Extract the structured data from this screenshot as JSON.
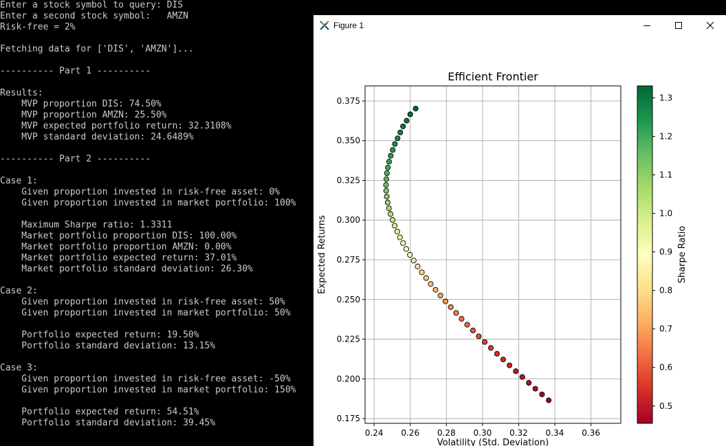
{
  "terminal": {
    "lines": [
      "Enter a stock symbol to query: DIS",
      "Enter a second stock symbol:   AMZN",
      "Risk-free = 2%",
      "",
      "Fetching data for ['DIS', 'AMZN']...",
      "",
      "---------- Part 1 ----------",
      "",
      "Results:",
      "    MVP proportion DIS: 74.50%",
      "    MVP proportion AMZN: 25.50%",
      "    MVP expected portfolio return: 32.3108%",
      "    MVP standard deviation: 24.6489%",
      "",
      "---------- Part 2 ----------",
      "",
      "Case 1:",
      "    Given proportion invested in risk-free asset: 0%",
      "    Given proportion invested in market portfolio: 100%",
      "",
      "    Maximum Sharpe ratio: 1.3311",
      "    Market portfolio proportion DIS: 100.00%",
      "    Market portfolio proportion AMZN: 0.00%",
      "    Market portfolio expected return: 37.01%",
      "    Market portfolio standard deviation: 26.30%",
      "",
      "Case 2:",
      "    Given proportion invested in risk-free asset: 50%",
      "    Given proportion invested in market portfolio: 50%",
      "",
      "    Portfolio expected return: 19.50%",
      "    Portfolio standard deviation: 13.15%",
      "",
      "Case 3:",
      "    Given proportion invested in risk-free asset: -50%",
      "    Given proportion invested in market portfolio: 150%",
      "",
      "    Portfolio expected return: 54.51%",
      "    Portfolio standard deviation: 39.45%"
    ]
  },
  "window": {
    "title": "Figure 1",
    "icons": {
      "app": "matplotlib-icon",
      "minimize": "minimize-icon",
      "maximize": "maximize-icon",
      "close": "close-icon"
    }
  },
  "chart_data": {
    "type": "scatter",
    "title": "Efficient Frontier",
    "xlabel": "Volatility (Std. Deviation)",
    "ylabel": "Expected Returns",
    "xlim": [
      0.235,
      0.3765
    ],
    "ylim": [
      0.172,
      0.3845
    ],
    "xticks": [
      "0.24",
      "0.26",
      "0.28",
      "0.30",
      "0.32",
      "0.34",
      "0.36"
    ],
    "yticks": [
      "0.175",
      "0.200",
      "0.225",
      "0.250",
      "0.275",
      "0.300",
      "0.325",
      "0.350",
      "0.375"
    ],
    "grid": true,
    "colorbar": {
      "label": "Sharpe Ratio",
      "range": [
        0.455,
        1.331
      ],
      "ticks": [
        "0.5",
        "0.6",
        "0.7",
        "0.8",
        "0.9",
        "1.0",
        "1.1",
        "1.2",
        "1.3"
      ],
      "colormap": "RdYlGn",
      "stops": [
        "#a50026",
        "#d73027",
        "#f46d43",
        "#fdae61",
        "#fee08b",
        "#ffffbf",
        "#d9ef8b",
        "#a6d96a",
        "#66bd63",
        "#1a9850",
        "#006837"
      ]
    },
    "points": [
      {
        "x": 0.263,
        "y": 0.3702,
        "s": 1.331
      },
      {
        "x": 0.26,
        "y": 0.3666,
        "s": 1.318
      },
      {
        "x": 0.258,
        "y": 0.3626,
        "s": 1.308
      },
      {
        "x": 0.256,
        "y": 0.359,
        "s": 1.296
      },
      {
        "x": 0.2545,
        "y": 0.3552,
        "s": 1.285
      },
      {
        "x": 0.253,
        "y": 0.3515,
        "s": 1.272
      },
      {
        "x": 0.2515,
        "y": 0.3479,
        "s": 1.259
      },
      {
        "x": 0.2503,
        "y": 0.3442,
        "s": 1.245
      },
      {
        "x": 0.2492,
        "y": 0.3405,
        "s": 1.231
      },
      {
        "x": 0.2483,
        "y": 0.3368,
        "s": 1.215
      },
      {
        "x": 0.2476,
        "y": 0.3331,
        "s": 1.199
      },
      {
        "x": 0.2471,
        "y": 0.3295,
        "s": 1.182
      },
      {
        "x": 0.2468,
        "y": 0.3258,
        "s": 1.163
      },
      {
        "x": 0.2466,
        "y": 0.3221,
        "s": 1.144
      },
      {
        "x": 0.2467,
        "y": 0.3185,
        "s": 1.123
      },
      {
        "x": 0.247,
        "y": 0.3148,
        "s": 1.102
      },
      {
        "x": 0.2475,
        "y": 0.3111,
        "s": 1.079
      },
      {
        "x": 0.2482,
        "y": 0.3074,
        "s": 1.056
      },
      {
        "x": 0.2491,
        "y": 0.3038,
        "s": 1.032
      },
      {
        "x": 0.2502,
        "y": 0.3001,
        "s": 1.008
      },
      {
        "x": 0.2514,
        "y": 0.2964,
        "s": 0.983
      },
      {
        "x": 0.2528,
        "y": 0.2928,
        "s": 0.958
      },
      {
        "x": 0.2543,
        "y": 0.2891,
        "s": 0.933
      },
      {
        "x": 0.256,
        "y": 0.2855,
        "s": 0.908
      },
      {
        "x": 0.2578,
        "y": 0.2818,
        "s": 0.883
      },
      {
        "x": 0.2598,
        "y": 0.2781,
        "s": 0.859
      },
      {
        "x": 0.2619,
        "y": 0.2745,
        "s": 0.835
      },
      {
        "x": 0.2641,
        "y": 0.2708,
        "s": 0.811
      },
      {
        "x": 0.2664,
        "y": 0.2671,
        "s": 0.788
      },
      {
        "x": 0.2688,
        "y": 0.2635,
        "s": 0.766
      },
      {
        "x": 0.2713,
        "y": 0.2598,
        "s": 0.744
      },
      {
        "x": 0.274,
        "y": 0.2561,
        "s": 0.723
      },
      {
        "x": 0.2767,
        "y": 0.2525,
        "s": 0.703
      },
      {
        "x": 0.2795,
        "y": 0.2488,
        "s": 0.684
      },
      {
        "x": 0.2824,
        "y": 0.2452,
        "s": 0.665
      },
      {
        "x": 0.2854,
        "y": 0.2415,
        "s": 0.647
      },
      {
        "x": 0.2884,
        "y": 0.2378,
        "s": 0.63
      },
      {
        "x": 0.2915,
        "y": 0.2341,
        "s": 0.614
      },
      {
        "x": 0.2947,
        "y": 0.2305,
        "s": 0.598
      },
      {
        "x": 0.2979,
        "y": 0.2268,
        "s": 0.583
      },
      {
        "x": 0.3012,
        "y": 0.2232,
        "s": 0.569
      },
      {
        "x": 0.3046,
        "y": 0.2195,
        "s": 0.555
      },
      {
        "x": 0.308,
        "y": 0.2158,
        "s": 0.542
      },
      {
        "x": 0.3114,
        "y": 0.2122,
        "s": 0.53
      },
      {
        "x": 0.3149,
        "y": 0.2085,
        "s": 0.518
      },
      {
        "x": 0.3184,
        "y": 0.2048,
        "s": 0.507
      },
      {
        "x": 0.322,
        "y": 0.2012,
        "s": 0.496
      },
      {
        "x": 0.3256,
        "y": 0.1975,
        "s": 0.486
      },
      {
        "x": 0.3292,
        "y": 0.1938,
        "s": 0.476
      },
      {
        "x": 0.3329,
        "y": 0.1902,
        "s": 0.467
      },
      {
        "x": 0.3366,
        "y": 0.1865,
        "s": 0.458
      }
    ]
  }
}
